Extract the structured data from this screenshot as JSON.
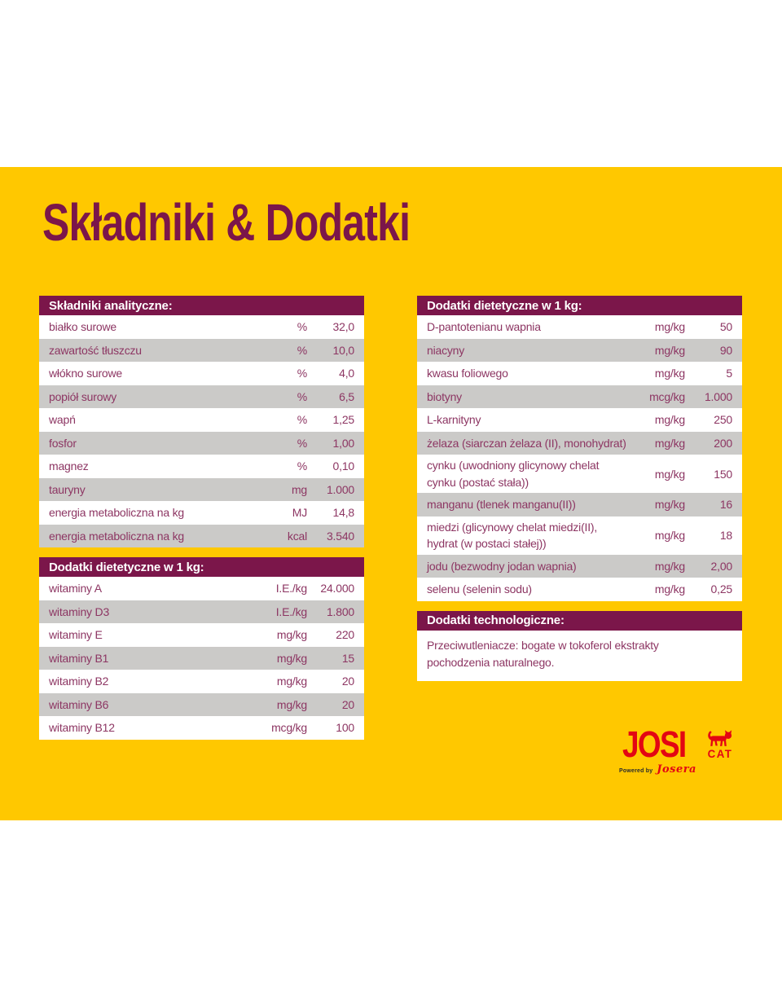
{
  "page": {
    "title": "Składniki & Dodatki"
  },
  "colors": {
    "background_card": "#FFC800",
    "header_maroon": "#7B164A",
    "row_text": "#8D3663",
    "row_alternate": "#CBCAC8",
    "logo_red": "#E30613"
  },
  "tables": {
    "analytical": {
      "header": "Składniki analityczne:",
      "rows": [
        {
          "label": "białko surowe",
          "unit": "%",
          "value": "32,0"
        },
        {
          "label": "zawartość tłuszczu",
          "unit": "%",
          "value": "10,0"
        },
        {
          "label": "włókno surowe",
          "unit": "%",
          "value": "4,0"
        },
        {
          "label": "popiół surowy",
          "unit": "%",
          "value": "6,5"
        },
        {
          "label": "wapń",
          "unit": "%",
          "value": "1,25"
        },
        {
          "label": "fosfor",
          "unit": "%",
          "value": "1,00"
        },
        {
          "label": "magnez",
          "unit": "%",
          "value": "0,10"
        },
        {
          "label": "tauryny",
          "unit": "mg",
          "value": "1.000"
        },
        {
          "label": "energia metaboliczna na kg",
          "unit": "MJ",
          "value": "14,8"
        },
        {
          "label": "energia metaboliczna na kg",
          "unit": "kcal",
          "value": "3.540"
        }
      ]
    },
    "dietary_left": {
      "header": "Dodatki dietetyczne w 1 kg:",
      "rows": [
        {
          "label": "witaminy A",
          "unit": "I.E./kg",
          "value": "24.000"
        },
        {
          "label": "witaminy D3",
          "unit": "I.E./kg",
          "value": "1.800"
        },
        {
          "label": "witaminy E",
          "unit": "mg/kg",
          "value": "220"
        },
        {
          "label": "witaminy B1",
          "unit": "mg/kg",
          "value": "15"
        },
        {
          "label": "witaminy B2",
          "unit": "mg/kg",
          "value": "20"
        },
        {
          "label": "witaminy B6",
          "unit": "mg/kg",
          "value": "20"
        },
        {
          "label": "witaminy B12",
          "unit": "mcg/kg",
          "value": "100"
        }
      ]
    },
    "dietary_right": {
      "header": "Dodatki dietetyczne w 1 kg:",
      "rows": [
        {
          "label": "D-pantotenianu wapnia",
          "unit": "mg/kg",
          "value": "50"
        },
        {
          "label": "niacyny",
          "unit": "mg/kg",
          "value": "90"
        },
        {
          "label": "kwasu foliowego",
          "unit": "mg/kg",
          "value": "5"
        },
        {
          "label": "biotyny",
          "unit": "mcg/kg",
          "value": "1.000"
        },
        {
          "label": "L-karnityny",
          "unit": "mg/kg",
          "value": "250"
        },
        {
          "label": "żelaza (siarczan żelaza (II), monohydrat)",
          "unit": "mg/kg",
          "value": "200"
        },
        {
          "label": [
            "cynku (uwodniony glicynowy chelat",
            "cynku (postać stała))"
          ],
          "unit": "mg/kg",
          "value": "150"
        },
        {
          "label": "manganu (tlenek manganu(II))",
          "unit": "mg/kg",
          "value": "16"
        },
        {
          "label": [
            "miedzi (glicynowy chelat miedzi(II),",
            "hydrat (w postaci stałej))"
          ],
          "unit": "mg/kg",
          "value": "18"
        },
        {
          "label": "jodu (bezwodny jodan wapnia)",
          "unit": "mg/kg",
          "value": "2,00"
        },
        {
          "label": "selenu (selenin sodu)",
          "unit": "mg/kg",
          "value": "0,25"
        }
      ]
    },
    "technological": {
      "header": "Dodatki technologiczne:",
      "text": "Przeciwutleniacze: bogate w tokoferol ekstrakty\npochodzenia naturalnego."
    }
  },
  "logo": {
    "brand": "JOSI",
    "sub": "CAT",
    "powered_by": "Powered by",
    "company": "Josera"
  }
}
